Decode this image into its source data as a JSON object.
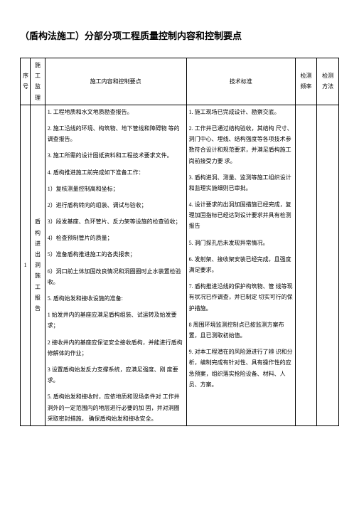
{
  "title": "（盾构法施工）分部分项工程质量控制内容和控制要点",
  "headers": {
    "seq": "序号",
    "proc": "施工 监理",
    "content": "施工内容和控制要点",
    "standard": "技术标准",
    "freq": "检测 频率",
    "method": "检测 方法"
  },
  "row": {
    "seq": "1",
    "proc": "盾构 进出 洞施 工报 告",
    "content_items": [
      "1. 工程地质和水文地质勘查报告。",
      "2. 施工沿线的环境、构筑物、地下管线和障碍物 等的调查报告。",
      "3. 施工所需的设计图纸资料和工程技术要求文件。",
      "4. 盾构推进施工前完成如下准备工作：",
      "1）复核测量控制高和坐标；",
      "2）进行盾构转向的组装、调试与验收；",
      "3）段发基座、负环管片、反力架等设施的检查验收；",
      "4）检查预制管片的质量；",
      "5）准备盾构推进施工的各类报表；",
      "6）洞口前土体加固改良情况和洞圈圈时止水装置检验收。",
      "5. 盾构始发和接收设施的准备:",
      "1 始发井内的基座应满足盾构组装、试运转及始发要求；",
      "2 接收井内的基座应保证安全接收盾构，并能进行盾构修解体的作业；",
      "3 设置盾构始发反力支撑系统，应满足强度、刚 度要求。",
      "5. 盾构始发和接收时，应依地质和现场条件对 工作井洞外的一定范围内的地层进行必要的加 固，并对洞圈采取密封措施，      确保盾构始发和接收安全。"
    ],
    "standard_items": [
      "1. 施工现场已完成设计、勘察交底。",
      "2. 工作井已通过结构验收，其结构 尺寸、洞门中心、埋线、结构强度等各项技术参数符合设计和规范要求，并满足盾构施工岗前接受力要 求。",
      "3. 盾构进洞、测量、监测等施工组织设计和监理实施细则已审批。",
      "4. 设计要求的出洞加固措施已经完成，复理加固指标已经达到设计要求并具有检测报告",
      "5. 洞门探孔后未发现异常情况。",
      "6. 发射架、接收架安装已经完成，且强度满足要求。",
      "7. 盾构推进沿线的保护构筑物、管 线等现有状况已作调查，并已制定 切实可行的保护措施。",
      "8 周围环境监测控制点已按监测方案布置，且已测取初始值。",
      "9. 对本工程潜在的风险源进行了辨 识和分析，编制完成有针对性、具有操作性的应急预案，组织落实抢险设备、材料、人员、方案。"
    ]
  }
}
